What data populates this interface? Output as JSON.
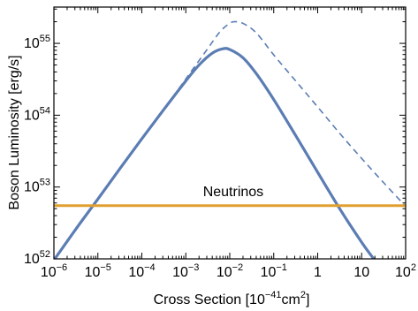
{
  "chart_data": {
    "type": "line",
    "title": "",
    "xlabel": {
      "prefix": "Cross Section  [10",
      "exp": "−41",
      "mid": "cm",
      "exp2": "2",
      "suffix": "]"
    },
    "ylabel": "Boson  Luminosity  [erg/s]",
    "xscale": "log",
    "yscale": "log",
    "xlim": [
      1e-06,
      100
    ],
    "ylim": [
      1e+52,
      3.2e+55
    ],
    "grid": false,
    "legend": "none",
    "x_ticks": [
      {
        "base": "10",
        "exp": "−6",
        "value": 1e-06
      },
      {
        "base": "10",
        "exp": "−5",
        "value": 1e-05
      },
      {
        "base": "10",
        "exp": "−4",
        "value": 0.0001
      },
      {
        "base": "10",
        "exp": "−3",
        "value": 0.001
      },
      {
        "base": "10",
        "exp": "−2",
        "value": 0.01
      },
      {
        "base": "10",
        "exp": "−1",
        "value": 0.1
      },
      {
        "base": "10",
        "exp": "",
        "value": 1,
        "plain": "1"
      },
      {
        "base": "10",
        "exp": "",
        "value": 10,
        "plain": "10"
      },
      {
        "base": "10",
        "exp": "2",
        "value": 100
      }
    ],
    "y_ticks": [
      {
        "base": "10",
        "exp": "52",
        "value": 1e+52
      },
      {
        "base": "10",
        "exp": "53",
        "value": 1e+53
      },
      {
        "base": "10",
        "exp": "54",
        "value": 1e+54
      },
      {
        "base": "10",
        "exp": "55",
        "value": 1e+55
      }
    ],
    "colors": {
      "solid": "#5b7db3",
      "dashed": "#5b7db3",
      "neutrinos": "#e0a030",
      "annotation": "#b8862a",
      "axes": "#000000"
    },
    "series": [
      {
        "style": "solid",
        "x": [
          1e-06,
          3.16e-06,
          1e-05,
          3.16e-05,
          0.0001,
          0.000316,
          0.001,
          0.002,
          0.004,
          0.007,
          0.01,
          0.02,
          0.04,
          0.1,
          0.316,
          1,
          3.16,
          10,
          20
        ],
        "y": [
          9.6e+51,
          2.6e+52,
          6.8e+52,
          1.8e+53,
          4.7e+53,
          1.2e+54,
          3e+54,
          5e+54,
          7.3e+54,
          8.4e+54,
          8.2e+54,
          6.3e+54,
          3.8e+54,
          1.65e+54,
          5.2e+53,
          1.6e+53,
          5e+52,
          1.7e+52,
          9.5e+51
        ]
      },
      {
        "style": "dashed",
        "x": [
          1e-06,
          3.16e-06,
          1e-05,
          3.16e-05,
          0.0001,
          0.000316,
          0.001,
          0.003,
          0.006,
          0.01,
          0.013,
          0.02,
          0.04,
          0.1,
          0.316,
          1,
          3.16,
          10,
          31.6,
          100
        ],
        "y": [
          9.6e+51,
          2.6e+52,
          6.8e+52,
          1.8e+53,
          4.7e+53,
          1.2e+54,
          3.2e+54,
          8.1e+54,
          1.45e+55,
          1.9e+55,
          2e+55,
          1.9e+55,
          1.4e+55,
          6.9e+54,
          3e+54,
          1.3e+54,
          5.6e+53,
          2.5e+53,
          1.15e+53,
          5.4e+52
        ]
      },
      {
        "name": "Neutrinos",
        "style": "constant",
        "x": [
          1e-06,
          100
        ],
        "y": [
          5.5e+52,
          5.5e+52
        ]
      }
    ],
    "annotations": [
      {
        "text": "Neutrinos",
        "x": 0.012,
        "y": 7.5e+52
      }
    ]
  }
}
